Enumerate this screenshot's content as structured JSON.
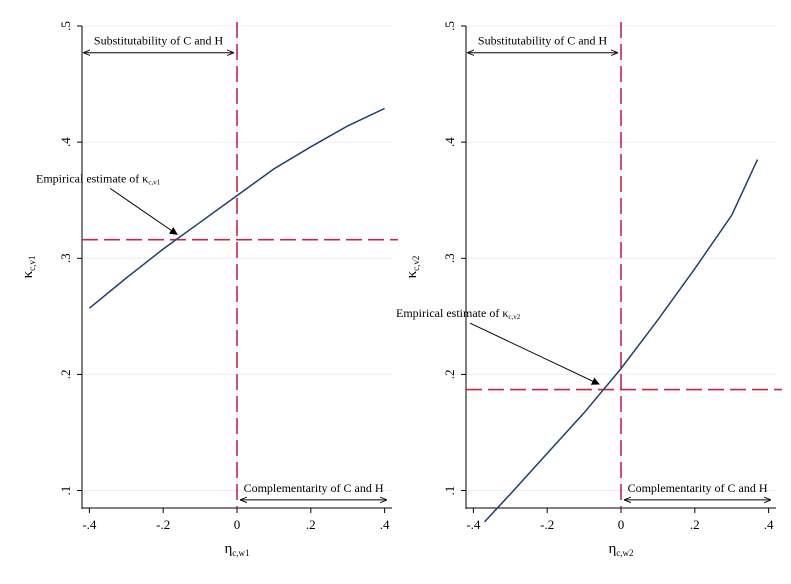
{
  "chart_data": [
    {
      "type": "line",
      "xlabel": {
        "symbol": "η",
        "subscript": "c,w1"
      },
      "ylabel": {
        "symbol": "κ",
        "subscript": "c,v1"
      },
      "xlim": [
        -0.42,
        0.42
      ],
      "ylim": [
        0.085,
        0.5
      ],
      "xticks": [
        -0.4,
        -0.2,
        0,
        0.2,
        0.4
      ],
      "xtick_labels": [
        "-.4",
        "-.2",
        "0",
        ".2",
        ".4"
      ],
      "yticks": [
        0.1,
        0.2,
        0.3,
        0.4,
        0.5
      ],
      "ytick_labels": [
        ".1",
        ".2",
        ".3",
        ".4",
        ".5"
      ],
      "grid": "horizontal",
      "series": [
        {
          "color": "#1f3f6e",
          "x": [
            -0.4,
            -0.3,
            -0.2,
            -0.1,
            0,
            0.1,
            0.2,
            0.3,
            0.4
          ],
          "y": [
            0.257,
            0.283,
            0.308,
            0.331,
            0.354,
            0.377,
            0.396,
            0.414,
            0.429
          ]
        }
      ],
      "reference_lines": {
        "color": "#c8264a",
        "horizontal_y": 0.316,
        "vertical_x": 0
      },
      "annotations": {
        "estimate": {
          "text": "Empirical estimate of ",
          "symbol": "κ",
          "subscript": "c,v1",
          "point": [
            -0.165,
            0.318
          ]
        },
        "substitutability": {
          "text": "Substitutability of C and H",
          "x_range": [
            -0.415,
            -0.01
          ],
          "y": 0.477
        },
        "complementarity": {
          "text": "Complementarity of C and H",
          "x_range": [
            0.01,
            0.405
          ],
          "y": 0.092
        }
      }
    },
    {
      "type": "line",
      "xlabel": {
        "symbol": "η",
        "subscript": "c,w2"
      },
      "ylabel": {
        "symbol": "κ",
        "subscript": "c,v2"
      },
      "xlim": [
        -0.42,
        0.42
      ],
      "ylim": [
        0.085,
        0.5
      ],
      "xticks": [
        -0.4,
        -0.2,
        0,
        0.2,
        0.4
      ],
      "xtick_labels": [
        "-.4",
        "-.2",
        "0",
        ".2",
        ".4"
      ],
      "yticks": [
        0.1,
        0.2,
        0.3,
        0.4,
        0.5
      ],
      "ytick_labels": [
        ".1",
        ".2",
        ".3",
        ".4",
        ".5"
      ],
      "grid": "horizontal",
      "series": [
        {
          "color": "#1f3f6e",
          "x": [
            -0.37,
            -0.3,
            -0.2,
            -0.1,
            0,
            0.1,
            0.2,
            0.3,
            0.37
          ],
          "y": [
            0.073,
            0.097,
            0.132,
            0.167,
            0.205,
            0.247,
            0.291,
            0.337,
            0.385
          ]
        }
      ],
      "reference_lines": {
        "color": "#c8264a",
        "horizontal_y": 0.187,
        "vertical_x": 0
      },
      "annotations": {
        "estimate": {
          "text": "Empirical estimate of ",
          "symbol": "κ",
          "subscript": "c,v2",
          "point": [
            -0.062,
            0.189
          ]
        },
        "substitutability": {
          "text": "Substitutability of C and H",
          "x_range": [
            -0.415,
            -0.01
          ],
          "y": 0.477
        },
        "complementarity": {
          "text": "Complementarity of C and H",
          "x_range": [
            0.01,
            0.405
          ],
          "y": 0.092
        }
      }
    }
  ]
}
